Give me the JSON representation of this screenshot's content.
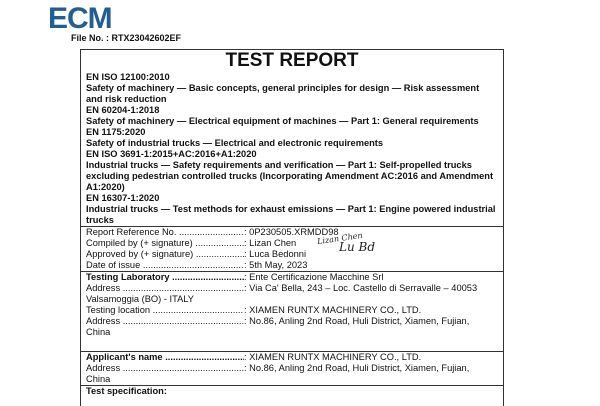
{
  "logo": "ECM",
  "file_no": "File No. : RTX23042602EF",
  "title": "TEST REPORT",
  "standards": [
    "EN ISO 12100:2010",
    "Safety of machinery — Basic concepts, general principles for design — Risk assessment and risk reduction",
    "EN 60204-1:2018",
    "Safety of machinery — Electrical equipment of machines — Part 1: General requirements",
    "EN 1175:2020",
    "Safety of industrial trucks — Electrical and electronic requirements",
    "EN ISO 3691-1:2015+AC:2016+A1:2020",
    "Industrial trucks — Safety requirements and verification — Part 1: Self-propelled trucks excluding pedestrian controlled trucks (Incorporating Amendment AC:2016 and Amendment A1:2020)",
    "EN 16307-1:2020",
    "Industrial trucks — Test methods for exhaust emissions — Part 1: Engine powered industrial trucks"
  ],
  "report": {
    "ref_label": "Report Reference No.",
    "ref_value": ": 0P230505.XRMDD98",
    "compiled_label": "Compiled by (+ signature)",
    "compiled_value": ": Lizan Chen",
    "approved_label": "Approved by (+ signature)",
    "approved_value": ": Luca Bedonni",
    "date_label": "Date of issue",
    "date_value": ": 5th May, 2023",
    "sig1": "Lizan Chen",
    "sig2": "Lu Bd"
  },
  "lab": {
    "lab_label": "Testing Laboratory",
    "lab_value": ": Ente Certificazione Macchine Srl",
    "addr_label": "Address",
    "addr_value": ": Via Ca' Bella, 243 – Loc. Castello di Serravalle – 40053",
    "addr_cont": "Valsamoggia (BO) - ITALY",
    "loc_label": "Testing location",
    "loc_value": ": XIAMEN RUNTX MACHINERY CO., LTD.",
    "loc_addr_label": "Address",
    "loc_addr_value": ": No.86, Anling 2nd Road, Huli District, Xiamen, Fujian,",
    "loc_addr_cont": "China"
  },
  "applicant": {
    "name_label": "Applicant's name",
    "name_value": ": XIAMEN RUNTX MACHINERY CO., LTD.",
    "addr_label": "Address",
    "addr_value": ": No.86, Anling 2nd Road, Huli District, Xiamen, Fujian,",
    "addr_cont": "China"
  },
  "spec": {
    "label": "Test specification:"
  }
}
